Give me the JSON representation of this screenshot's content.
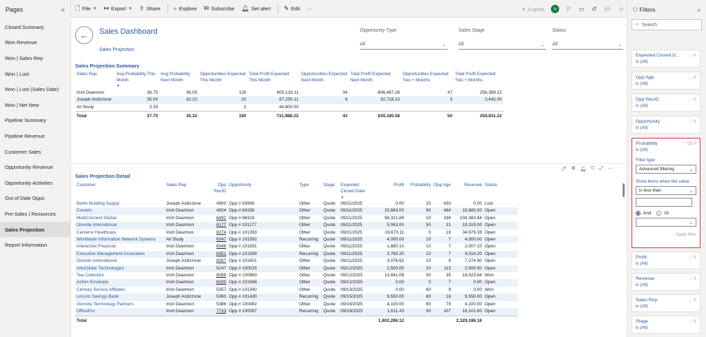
{
  "pages_pane": {
    "title": "Pages",
    "items": [
      {
        "label": "Closed Summary",
        "active": false
      },
      {
        "label": "Won Revenue",
        "active": false
      },
      {
        "label": "Won | Sales Rep",
        "active": false
      },
      {
        "label": "Won | Lost",
        "active": false
      },
      {
        "label": "Won | Lost (Sales Date)",
        "active": false
      },
      {
        "label": "Won | Net New",
        "active": false
      },
      {
        "label": "Pipeline Summary",
        "active": false
      },
      {
        "label": "Pipeline Revenue",
        "active": false
      },
      {
        "label": "Customer Sales",
        "active": false
      },
      {
        "label": "Opportunity Revenue",
        "active": false
      },
      {
        "label": "Opportunity Activities",
        "active": false
      },
      {
        "label": "Out of Date Opps",
        "active": false
      },
      {
        "label": "Pre-Sales | Resources",
        "active": false
      },
      {
        "label": "Sales Projection",
        "active": true
      },
      {
        "label": "Report Information",
        "active": false
      }
    ]
  },
  "toolbar": {
    "file": "File",
    "export": "Export",
    "share": "Share",
    "explore": "Explore",
    "subscribe": "Subscribe",
    "set_alert": "Set alert",
    "edit": "Edit",
    "more": "···",
    "copilot": "Copilot"
  },
  "dashboard": {
    "title": "Sales Dashboard",
    "subtitle": "Sales Projection",
    "slicers": [
      {
        "label": "Opportunity Type",
        "value": "All"
      },
      {
        "label": "Sales Stage",
        "value": "All"
      },
      {
        "label": "Status",
        "value": "All"
      }
    ]
  },
  "summary": {
    "title": "Sales Projection Summary",
    "headers": [
      "Sales Rep",
      "Avg Probability This Month",
      "Avg Probability Next Month",
      "Opportunities Expected This Month",
      "Total Profit Expected This Month",
      "Opportunities Expected Next Month",
      "Total Profit Expected Next Month",
      "Opportunities Expected Two + Months",
      "Total Profit Expected Two + Months"
    ],
    "rows": [
      [
        "Irish Dearmon",
        "38.75",
        "36.05",
        "128",
        "600,133.11",
        "34",
        "806,467.26",
        "47",
        "256,389.22"
      ],
      [
        "Joseph Ardizzone",
        "35.00",
        "32.22",
        "20",
        "87,255.11",
        "8",
        "32,718.32",
        "3",
        "3,442.00"
      ],
      [
        "Ali Study",
        "3.33",
        "",
        "2",
        "44,600.00",
        "",
        "",
        "",
        ""
      ]
    ],
    "total": [
      "Total",
      "37.70",
      "35.32",
      "150",
      "731,988.22",
      "42",
      "839,185.58",
      "50",
      "259,831.22"
    ]
  },
  "detail": {
    "title": "Sales Projection Detail",
    "headers": [
      "Customer",
      "Sales Rep",
      "Opp RecID",
      "Opportunity",
      "Type",
      "Stage",
      "Expected Closed Date",
      "Profit",
      "Probability",
      "Opp Age",
      "Revenue",
      "Status"
    ],
    "rows": [
      [
        "Berlin Building Supply",
        "Joseph Ardizzone",
        "4900",
        "Opp # 93906",
        "Other",
        "Quote",
        "09/11/2025",
        "0.00",
        "20",
        "433",
        "0.00",
        "Lost"
      ],
      [
        "Covario",
        "Irish Dearmon",
        "4924",
        "Opp # 94156",
        "Other",
        "Quote",
        "09/11/2025",
        "15,683.00",
        "90",
        "464",
        "15,683.00",
        "Open"
      ],
      [
        "MediConnect Global",
        "Irish Dearmon",
        "6492",
        "Opp # 96324",
        "Other",
        "Quote",
        "09/11/2025",
        "94,321.89",
        "10",
        "338",
        "104,383.84",
        "Open"
      ],
      [
        "Orenda International",
        "Irish Dearmon",
        "8177",
        "Opp # 101177",
        "Other",
        "Quote",
        "09/11/2025",
        "5,063.00",
        "50",
        "31",
        "19,319.00",
        "Open"
      ],
      [
        "Centerre Healthcare",
        "Irish Dearmon",
        "8274",
        "Opp # 101393",
        "Other",
        "Quote",
        "09/11/2025",
        "19,673.11",
        "0",
        "18",
        "34,676.35",
        "Open"
      ],
      [
        "Worldwide Information Network Systems",
        "Ali Study",
        "8347",
        "Opp # 101592",
        "Recurring",
        "Quote",
        "09/11/2025",
        "4,000.00",
        "10",
        "7",
        "4,000.00",
        "Open"
      ],
      [
        "Interactive Financial",
        "Irish Dearmon",
        "8348",
        "Opp # 101591",
        "Other",
        "Quote",
        "09/11/2025",
        "1,880.10",
        "10",
        "7",
        "2,007.10",
        "Open"
      ],
      [
        "Executive Management Associates",
        "Irish Dearmon",
        "8351",
        "Opp # 101589",
        "Recurring",
        "Quote",
        "09/11/2025",
        "3,760.20",
        "10",
        "7",
        "4,014.20",
        "Open"
      ],
      [
        "Orenda International",
        "Joseph Ardizzone",
        "8357",
        "Opp # 101601",
        "Other",
        "Quote",
        "09/11/2025",
        "3,076.62",
        "10",
        "6",
        "7,274.90",
        "Open"
      ],
      [
        "InterGlobe Technologies",
        "Irish Dearmon",
        "5247",
        "Opp # 100015",
        "Other",
        "Quote",
        "09/12/2025",
        "2,500.00",
        "20",
        "113",
        "2,500.00",
        "Open"
      ],
      [
        "Tea Collection",
        "Irish Dearmon",
        "8099",
        "Opp # 100983",
        "Other",
        "Quote",
        "09/12/2025",
        "13,841.08",
        "50",
        "35",
        "19,023.64",
        "Won"
      ],
      [
        "Action Envelope",
        "Irish Dearmon",
        "8335",
        "Opp # 101568",
        "Other",
        "Quote",
        "09/12/2025",
        "0.00",
        "0",
        "7",
        "0.00",
        "Open"
      ],
      [
        "Century Service Affiliates",
        "Irish Dearmon",
        "5357",
        "Opp # 101340",
        "Other",
        "Quote",
        "09/13/2025",
        "0.00",
        "60",
        "9",
        "0.00",
        "Won"
      ],
      [
        "Lincoln Savings Bank",
        "Joseph Ardizzone",
        "5360",
        "Opp # 101430",
        "Recurring",
        "Quote",
        "09/15/2025",
        "9,550.00",
        "80",
        "16",
        "9,550.00",
        "Open"
      ],
      [
        "Veroxity Technology Partners",
        "Irish Dearmon",
        "5386",
        "Opp # 100492",
        "Other",
        "Quote",
        "09/16/2025",
        "4,100.00",
        "80",
        "79",
        "4,100.00",
        "Open"
      ],
      [
        "OfficePro",
        "Irish Dearmon",
        "7733",
        "Opp # 100087",
        "Recurring",
        "Quote",
        "09/18/2025",
        "1,611.43",
        "50",
        "107",
        "16,101.60",
        "Open"
      ]
    ],
    "total": [
      "Total",
      "",
      "",
      "",
      "",
      "",
      "",
      "1,602,286.12",
      "",
      "",
      "2,329,186.16",
      ""
    ]
  },
  "filters_pane": {
    "title": "Filters",
    "search_placeholder": "Search",
    "cards_top": [
      {
        "name": "Expected Closed D...",
        "value": "is (All)"
      },
      {
        "name": "Opp Age",
        "value": "is (All)"
      },
      {
        "name": "Opp RecID",
        "value": "is (All)"
      },
      {
        "name": "Opportunity",
        "value": "is (All)"
      }
    ],
    "expanded": {
      "name": "Probability",
      "value": "is (All)",
      "filter_type_label": "Filter type",
      "filter_type": "Advanced filtering",
      "show_items_label": "Show items when the value",
      "condition": "is less than",
      "and_label": "And",
      "or_label": "Or",
      "apply_label": "Apply filter"
    },
    "cards_bottom": [
      {
        "name": "Profit",
        "value": "is (All)"
      },
      {
        "name": "Revenue",
        "value": "is (All)"
      },
      {
        "name": "Sales Rep",
        "value": "is (All)"
      },
      {
        "name": "Stage",
        "value": "is (All)"
      }
    ]
  }
}
